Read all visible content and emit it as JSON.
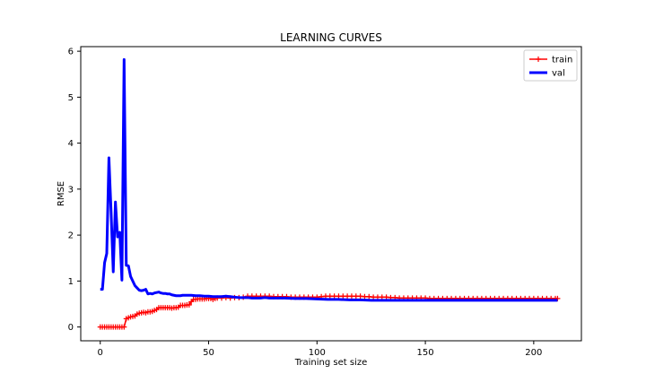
{
  "chart_data": {
    "type": "line",
    "title": "LEARNING CURVES",
    "xlabel": "Training set size",
    "ylabel": "RMSE",
    "xlim": [
      -9,
      222
    ],
    "ylim": [
      -0.3,
      6.1
    ],
    "xticks": [
      0,
      50,
      100,
      150,
      200
    ],
    "yticks": [
      0,
      1,
      2,
      3,
      4,
      5,
      6
    ],
    "grid": false,
    "legend_position": "top-right",
    "series": [
      {
        "name": "train",
        "color": "#ff0000",
        "marker": "plus",
        "points": [
          [
            0,
            0.0
          ],
          [
            1,
            0.0
          ],
          [
            2,
            0.0
          ],
          [
            3,
            0.0
          ],
          [
            4,
            0.0
          ],
          [
            5,
            0.0
          ],
          [
            6,
            0.0
          ],
          [
            7,
            0.0
          ],
          [
            8,
            0.0
          ],
          [
            9,
            0.0
          ],
          [
            10,
            0.0
          ],
          [
            11,
            0.0
          ],
          [
            12,
            0.18
          ],
          [
            13,
            0.2
          ],
          [
            14,
            0.22
          ],
          [
            15,
            0.23
          ],
          [
            16,
            0.24
          ],
          [
            17,
            0.28
          ],
          [
            18,
            0.3
          ],
          [
            19,
            0.31
          ],
          [
            20,
            0.32
          ],
          [
            21,
            0.31
          ],
          [
            22,
            0.33
          ],
          [
            23,
            0.33
          ],
          [
            24,
            0.34
          ],
          [
            25,
            0.36
          ],
          [
            26,
            0.38
          ],
          [
            27,
            0.42
          ],
          [
            28,
            0.42
          ],
          [
            29,
            0.42
          ],
          [
            30,
            0.42
          ],
          [
            31,
            0.42
          ],
          [
            32,
            0.42
          ],
          [
            33,
            0.41
          ],
          [
            34,
            0.42
          ],
          [
            35,
            0.42
          ],
          [
            36,
            0.43
          ],
          [
            37,
            0.47
          ],
          [
            38,
            0.47
          ],
          [
            39,
            0.47
          ],
          [
            40,
            0.48
          ],
          [
            41,
            0.48
          ],
          [
            42,
            0.55
          ],
          [
            43,
            0.6
          ],
          [
            44,
            0.6
          ],
          [
            45,
            0.61
          ],
          [
            46,
            0.61
          ],
          [
            47,
            0.61
          ],
          [
            48,
            0.61
          ],
          [
            49,
            0.62
          ],
          [
            50,
            0.62
          ],
          [
            51,
            0.62
          ],
          [
            52,
            0.6
          ],
          [
            53,
            0.62
          ],
          [
            54,
            0.63
          ],
          [
            56,
            0.63
          ],
          [
            58,
            0.64
          ],
          [
            60,
            0.63
          ],
          [
            62,
            0.64
          ],
          [
            64,
            0.64
          ],
          [
            66,
            0.65
          ],
          [
            68,
            0.67
          ],
          [
            70,
            0.67
          ],
          [
            72,
            0.67
          ],
          [
            74,
            0.67
          ],
          [
            76,
            0.67
          ],
          [
            78,
            0.67
          ],
          [
            80,
            0.66
          ],
          [
            82,
            0.66
          ],
          [
            84,
            0.66
          ],
          [
            86,
            0.66
          ],
          [
            88,
            0.65
          ],
          [
            90,
            0.65
          ],
          [
            92,
            0.65
          ],
          [
            94,
            0.65
          ],
          [
            96,
            0.65
          ],
          [
            98,
            0.65
          ],
          [
            100,
            0.65
          ],
          [
            102,
            0.66
          ],
          [
            104,
            0.67
          ],
          [
            106,
            0.67
          ],
          [
            108,
            0.67
          ],
          [
            110,
            0.67
          ],
          [
            112,
            0.67
          ],
          [
            114,
            0.67
          ],
          [
            116,
            0.67
          ],
          [
            118,
            0.67
          ],
          [
            120,
            0.67
          ],
          [
            122,
            0.66
          ],
          [
            124,
            0.66
          ],
          [
            126,
            0.65
          ],
          [
            128,
            0.65
          ],
          [
            130,
            0.65
          ],
          [
            132,
            0.65
          ],
          [
            134,
            0.64
          ],
          [
            136,
            0.64
          ],
          [
            138,
            0.63
          ],
          [
            140,
            0.63
          ],
          [
            142,
            0.63
          ],
          [
            144,
            0.63
          ],
          [
            146,
            0.63
          ],
          [
            148,
            0.63
          ],
          [
            150,
            0.63
          ],
          [
            152,
            0.62
          ],
          [
            154,
            0.62
          ],
          [
            156,
            0.62
          ],
          [
            158,
            0.62
          ],
          [
            160,
            0.62
          ],
          [
            162,
            0.62
          ],
          [
            164,
            0.62
          ],
          [
            166,
            0.62
          ],
          [
            168,
            0.62
          ],
          [
            170,
            0.62
          ],
          [
            172,
            0.62
          ],
          [
            174,
            0.62
          ],
          [
            176,
            0.62
          ],
          [
            178,
            0.62
          ],
          [
            180,
            0.62
          ],
          [
            182,
            0.62
          ],
          [
            184,
            0.62
          ],
          [
            186,
            0.62
          ],
          [
            188,
            0.62
          ],
          [
            190,
            0.62
          ],
          [
            192,
            0.62
          ],
          [
            194,
            0.62
          ],
          [
            196,
            0.62
          ],
          [
            198,
            0.62
          ],
          [
            200,
            0.62
          ],
          [
            202,
            0.62
          ],
          [
            204,
            0.62
          ],
          [
            206,
            0.62
          ],
          [
            208,
            0.62
          ],
          [
            210,
            0.62
          ],
          [
            211,
            0.62
          ]
        ]
      },
      {
        "name": "val",
        "color": "#0000ff",
        "marker": "none",
        "points": [
          [
            0,
            0.82
          ],
          [
            1,
            0.82
          ],
          [
            2,
            1.4
          ],
          [
            3,
            1.6
          ],
          [
            4,
            3.68
          ],
          [
            5,
            2.5
          ],
          [
            6,
            1.2
          ],
          [
            7,
            2.72
          ],
          [
            8,
            1.96
          ],
          [
            9,
            2.06
          ],
          [
            10,
            1.02
          ],
          [
            11,
            5.82
          ],
          [
            12,
            1.34
          ],
          [
            13,
            1.33
          ],
          [
            14,
            1.1
          ],
          [
            15,
            1.0
          ],
          [
            16,
            0.9
          ],
          [
            17,
            0.85
          ],
          [
            18,
            0.8
          ],
          [
            19,
            0.79
          ],
          [
            20,
            0.8
          ],
          [
            21,
            0.82
          ],
          [
            22,
            0.72
          ],
          [
            23,
            0.73
          ],
          [
            24,
            0.72
          ],
          [
            25,
            0.74
          ],
          [
            26,
            0.75
          ],
          [
            27,
            0.76
          ],
          [
            28,
            0.74
          ],
          [
            29,
            0.73
          ],
          [
            30,
            0.73
          ],
          [
            31,
            0.72
          ],
          [
            32,
            0.72
          ],
          [
            33,
            0.7
          ],
          [
            34,
            0.69
          ],
          [
            35,
            0.68
          ],
          [
            36,
            0.68
          ],
          [
            37,
            0.68
          ],
          [
            38,
            0.69
          ],
          [
            39,
            0.69
          ],
          [
            40,
            0.69
          ],
          [
            42,
            0.69
          ],
          [
            44,
            0.68
          ],
          [
            46,
            0.68
          ],
          [
            48,
            0.67
          ],
          [
            50,
            0.67
          ],
          [
            52,
            0.66
          ],
          [
            54,
            0.66
          ],
          [
            56,
            0.66
          ],
          [
            58,
            0.67
          ],
          [
            60,
            0.66
          ],
          [
            62,
            0.65
          ],
          [
            64,
            0.64
          ],
          [
            66,
            0.64
          ],
          [
            68,
            0.64
          ],
          [
            70,
            0.63
          ],
          [
            72,
            0.63
          ],
          [
            74,
            0.63
          ],
          [
            76,
            0.64
          ],
          [
            78,
            0.63
          ],
          [
            80,
            0.63
          ],
          [
            85,
            0.63
          ],
          [
            90,
            0.62
          ],
          [
            95,
            0.62
          ],
          [
            100,
            0.61
          ],
          [
            105,
            0.6
          ],
          [
            110,
            0.6
          ],
          [
            115,
            0.59
          ],
          [
            120,
            0.59
          ],
          [
            125,
            0.58
          ],
          [
            130,
            0.58
          ],
          [
            135,
            0.58
          ],
          [
            140,
            0.58
          ],
          [
            145,
            0.58
          ],
          [
            150,
            0.58
          ],
          [
            155,
            0.58
          ],
          [
            160,
            0.58
          ],
          [
            165,
            0.58
          ],
          [
            170,
            0.58
          ],
          [
            175,
            0.58
          ],
          [
            180,
            0.58
          ],
          [
            185,
            0.58
          ],
          [
            190,
            0.58
          ],
          [
            195,
            0.58
          ],
          [
            200,
            0.58
          ],
          [
            205,
            0.58
          ],
          [
            211,
            0.58
          ]
        ]
      }
    ]
  }
}
